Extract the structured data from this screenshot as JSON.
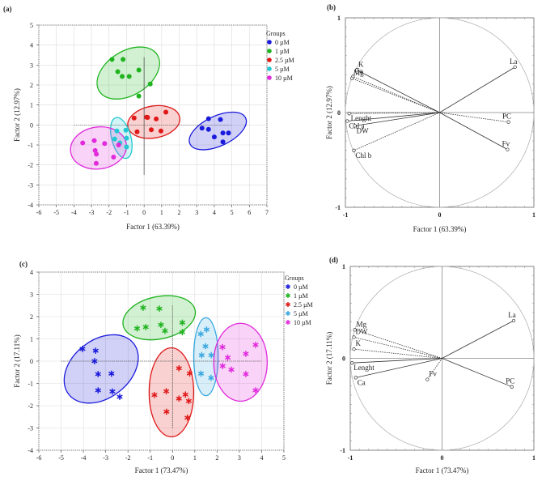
{
  "chart_data": [
    {
      "panel": "(a)",
      "type": "scatter",
      "xlabel": "Factor 1 (63.39%)",
      "ylabel": "Factor 2 (12.97%)",
      "xlim": [
        -6,
        7
      ],
      "ylim": [
        -4,
        5
      ],
      "xticks": [
        -6,
        -5,
        -4,
        -3,
        -2,
        -1,
        0,
        1,
        2,
        3,
        4,
        5,
        6,
        7
      ],
      "yticks": [
        -4,
        -3,
        -2,
        -1,
        0,
        1,
        2,
        3,
        4,
        5
      ],
      "grid": true,
      "marker": "circle",
      "legend": {
        "title": "Groups",
        "position": "right"
      },
      "series": [
        {
          "name": "0 µM",
          "color": "#1a1adc",
          "ellipse": {
            "cx": 4.2,
            "cy": -0.3,
            "rx": 1.75,
            "ry": 0.75,
            "angle": -25
          },
          "points": [
            [
              3.67,
              0.31
            ],
            [
              4.35,
              0.27
            ],
            [
              3.3,
              -0.16
            ],
            [
              3.67,
              -0.22
            ],
            [
              4.49,
              -0.4
            ],
            [
              4.81,
              -0.4
            ],
            [
              4.0,
              -0.6
            ],
            [
              4.49,
              -0.85
            ]
          ]
        },
        {
          "name": "1 µM",
          "color": "#1fb41f",
          "ellipse": {
            "cx": -0.9,
            "cy": 2.6,
            "rx": 1.95,
            "ry": 1.1,
            "angle": -32
          },
          "points": [
            [
              -1.83,
              3.28
            ],
            [
              -1.2,
              3.28
            ],
            [
              -1.5,
              2.67
            ],
            [
              -1.25,
              2.43
            ],
            [
              -0.85,
              2.43
            ],
            [
              -0.3,
              2.75
            ],
            [
              0.35,
              2.05
            ],
            [
              -0.3,
              1.45
            ]
          ]
        },
        {
          "name": "2.5 µM",
          "color": "#e01818",
          "ellipse": {
            "cx": 0.55,
            "cy": 0.15,
            "rx": 1.5,
            "ry": 0.8,
            "angle": -10
          },
          "points": [
            [
              -0.57,
              0.35
            ],
            [
              0.14,
              0.39
            ],
            [
              0.2,
              0.38
            ],
            [
              0.69,
              0.3
            ],
            [
              1.24,
              0.64
            ],
            [
              -0.4,
              -0.34
            ],
            [
              0.41,
              -0.24
            ],
            [
              0.96,
              -0.3
            ]
          ]
        },
        {
          "name": "5 µM",
          "color": "#22c8d2",
          "ellipse": {
            "cx": -1.3,
            "cy": -0.65,
            "rx": 0.55,
            "ry": 1.05,
            "angle": -15
          },
          "points": [
            [
              -1.55,
              -0.3
            ],
            [
              -1.04,
              -0.26
            ],
            [
              -1.0,
              -0.66
            ],
            [
              -1.0,
              -1.1
            ],
            [
              -1.68,
              -0.7
            ],
            [
              -1.38,
              -0.9
            ]
          ]
        },
        {
          "name": "10 µM",
          "color": "#e02adc",
          "ellipse": {
            "cx": -2.6,
            "cy": -1.15,
            "rx": 1.6,
            "ry": 1.05,
            "angle": -8
          },
          "points": [
            [
              -3.5,
              -0.9
            ],
            [
              -2.84,
              -0.78
            ],
            [
              -2.25,
              -0.93
            ],
            [
              -2.79,
              -1.28
            ],
            [
              -2.72,
              -1.46
            ],
            [
              -1.74,
              -1.61
            ],
            [
              -2.73,
              -1.92
            ],
            [
              -1.45,
              -1.0
            ]
          ]
        }
      ],
      "centerlines": {
        "h": [
          -4,
          5,
          0
        ],
        "v": [
          0,
          -2.5,
          3.4
        ]
      }
    },
    {
      "panel": "(b)",
      "type": "scatter",
      "subtype": "loading-circle",
      "xlabel": "Factor 1 (63.39%)",
      "ylabel": "Factor 2 (12.97%)",
      "xlim": [
        -1,
        1
      ],
      "ylim": [
        -1,
        1
      ],
      "xticks": [
        -1,
        0,
        1
      ],
      "yticks": [
        -1,
        0,
        1
      ],
      "variables": [
        {
          "name": "K",
          "x": -0.88,
          "y": 0.45,
          "line": "solid"
        },
        {
          "name": "Ca",
          "x": -0.92,
          "y": 0.38,
          "line": "dotted"
        },
        {
          "name": "Mg",
          "x": -0.93,
          "y": 0.36,
          "line": "dotted"
        },
        {
          "name": "Lenght",
          "x": -0.96,
          "y": -0.01,
          "line": "dotted"
        },
        {
          "name": "Chl a",
          "x": -0.98,
          "y": -0.09,
          "line": "solid"
        },
        {
          "name": "DW",
          "x": -0.9,
          "y": -0.14,
          "line": "solid"
        },
        {
          "name": "Chl b",
          "x": -0.91,
          "y": -0.4,
          "line": "dotted"
        },
        {
          "name": "La",
          "x": 0.8,
          "y": 0.48,
          "line": "solid"
        },
        {
          "name": "PC",
          "x": 0.73,
          "y": -0.1,
          "line": "dotted"
        },
        {
          "name": "Fv",
          "x": 0.72,
          "y": -0.39,
          "line": "solid"
        }
      ]
    },
    {
      "panel": "(c)",
      "type": "scatter",
      "xlabel": "Factor 1 (73.47%)",
      "ylabel": "Factor 2 (17.11%)",
      "xlim": [
        -6,
        5
      ],
      "ylim": [
        -4,
        4
      ],
      "xticks": [
        -6,
        -5,
        -4,
        -3,
        -2,
        -1,
        0,
        1,
        2,
        3,
        4,
        5
      ],
      "yticks": [
        -4,
        -3,
        -2,
        -1,
        0,
        1,
        2,
        3,
        4
      ],
      "grid": true,
      "marker": "asterisk",
      "legend": {
        "title": "Groups",
        "position": "right"
      },
      "series": [
        {
          "name": "0 µM",
          "color": "#1a1adc",
          "ellipse": {
            "cx": -3.2,
            "cy": -0.35,
            "rx": 1.85,
            "ry": 1.3,
            "angle": -38
          },
          "points": [
            [
              -4.04,
              0.55
            ],
            [
              -3.45,
              0.47
            ],
            [
              -3.5,
              0.0
            ],
            [
              -3.34,
              -0.58
            ],
            [
              -2.74,
              -0.56
            ],
            [
              -3.34,
              -1.31
            ],
            [
              -2.7,
              -1.36
            ],
            [
              -2.37,
              -1.6
            ]
          ]
        },
        {
          "name": "1 µM",
          "color": "#1fb41f",
          "ellipse": {
            "cx": -0.6,
            "cy": 1.95,
            "rx": 1.65,
            "ry": 0.95,
            "angle": -12
          },
          "points": [
            [
              -1.32,
              2.4
            ],
            [
              -0.59,
              2.36
            ],
            [
              -1.59,
              1.47
            ],
            [
              -1.2,
              1.53
            ],
            [
              -0.52,
              1.63
            ],
            [
              -0.34,
              1.36
            ],
            [
              0.44,
              1.73
            ],
            [
              0.44,
              1.3
            ]
          ]
        },
        {
          "name": "2.5 µM",
          "color": "#e01818",
          "ellipse": {
            "cx": -0.05,
            "cy": -1.4,
            "rx": 1.0,
            "ry": 2.0,
            "angle": 0
          },
          "points": [
            [
              0.29,
              -0.32
            ],
            [
              0.77,
              -0.55
            ],
            [
              -0.81,
              -1.52
            ],
            [
              -0.28,
              -1.35
            ],
            [
              0.29,
              -1.68
            ],
            [
              0.58,
              -1.5
            ],
            [
              0.73,
              -1.79
            ],
            [
              -0.27,
              -2.27
            ],
            [
              0.67,
              -2.54
            ]
          ]
        },
        {
          "name": "5 µM",
          "color": "#3aa8e0",
          "ellipse": {
            "cx": 1.5,
            "cy": 0.2,
            "rx": 0.55,
            "ry": 1.75,
            "angle": 0
          },
          "points": [
            [
              1.27,
              1.22
            ],
            [
              1.53,
              1.42
            ],
            [
              1.48,
              0.67
            ],
            [
              1.31,
              0.27
            ],
            [
              1.74,
              0.27
            ],
            [
              1.28,
              -0.56
            ],
            [
              1.73,
              -0.75
            ]
          ]
        },
        {
          "name": "10 µM",
          "color": "#e02adc",
          "ellipse": {
            "cx": 3.05,
            "cy": -0.05,
            "rx": 1.2,
            "ry": 1.75,
            "angle": 0
          },
          "points": [
            [
              2.24,
              0.63
            ],
            [
              3.73,
              0.73
            ],
            [
              2.48,
              0.16
            ],
            [
              3.29,
              0.33
            ],
            [
              2.25,
              -0.22
            ],
            [
              2.64,
              -0.38
            ],
            [
              3.29,
              -0.58
            ],
            [
              3.73,
              -1.31
            ]
          ]
        }
      ],
      "centerlines": {
        "h": [
          -5,
          4,
          0
        ],
        "v": [
          0,
          -3.0,
          2.5
        ]
      }
    },
    {
      "panel": "(d)",
      "type": "scatter",
      "subtype": "loading-circle",
      "xlabel": "Factor 1 (73.47%)",
      "ylabel": "Factor 2 (17.11%)",
      "xlim": [
        -1,
        1
      ],
      "ylim": [
        -1,
        1
      ],
      "xticks": [
        -1,
        0,
        1
      ],
      "yticks": [
        -1,
        0,
        1
      ],
      "variables": [
        {
          "name": "Mg",
          "x": -0.95,
          "y": 0.31,
          "line": "dotted"
        },
        {
          "name": "DW",
          "x": -0.96,
          "y": 0.23,
          "line": "dotted"
        },
        {
          "name": "K",
          "x": -0.96,
          "y": 0.1,
          "line": "dotted"
        },
        {
          "name": "Lenght",
          "x": -0.98,
          "y": -0.05,
          "line": "solid"
        },
        {
          "name": "Ca",
          "x": -0.94,
          "y": -0.21,
          "line": "solid"
        },
        {
          "name": "Fv",
          "x": -0.16,
          "y": -0.23,
          "line": "dotted"
        },
        {
          "name": "La",
          "x": 0.78,
          "y": 0.41,
          "line": "solid"
        },
        {
          "name": "PC",
          "x": 0.76,
          "y": -0.31,
          "line": "solid"
        }
      ]
    }
  ]
}
